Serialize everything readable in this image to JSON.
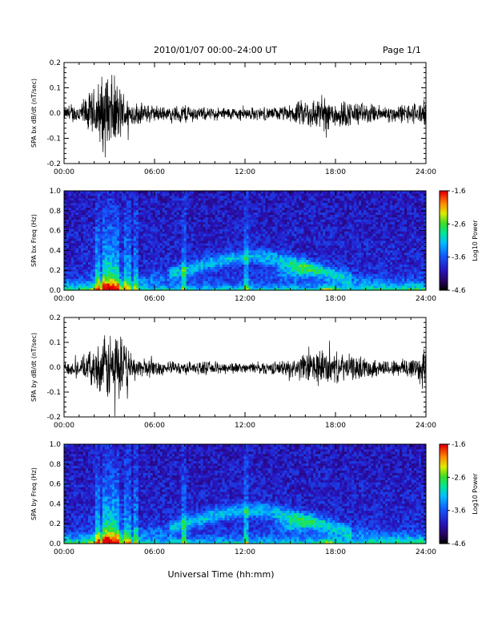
{
  "header": {
    "title": "2010/01/07  00:00–24:00 UT",
    "page": "Page 1/1"
  },
  "chart_data": [
    {
      "id": "bx-time",
      "type": "line",
      "ylabel": "SPA bx dB/dt (nT/sec)",
      "xlabel": "",
      "xlim": [
        0,
        24
      ],
      "ylim": [
        -0.2,
        0.2
      ],
      "xticks": [
        "00:00",
        "06:00",
        "12:00",
        "18:00",
        "24:00"
      ],
      "yticks": [
        "-0.2",
        "-0.1",
        "0.0",
        "0.1",
        "0.2"
      ],
      "series": [
        {
          "envelope": [
            [
              0,
              0.03
            ],
            [
              1,
              0.05
            ],
            [
              2,
              0.12
            ],
            [
              2.5,
              0.18
            ],
            [
              3,
              0.2
            ],
            [
              3.5,
              0.15
            ],
            [
              4,
              0.1
            ],
            [
              4.5,
              0.06
            ],
            [
              5,
              0.05
            ],
            [
              6,
              0.04
            ],
            [
              7,
              0.03
            ],
            [
              8,
              0.05
            ],
            [
              9,
              0.03
            ],
            [
              10,
              0.03
            ],
            [
              11,
              0.03
            ],
            [
              12,
              0.03
            ],
            [
              13,
              0.03
            ],
            [
              14,
              0.03
            ],
            [
              15,
              0.04
            ],
            [
              16,
              0.07
            ],
            [
              17,
              0.08
            ],
            [
              18,
              0.07
            ],
            [
              19,
              0.06
            ],
            [
              20,
              0.05
            ],
            [
              21,
              0.04
            ],
            [
              22,
              0.04
            ],
            [
              23,
              0.05
            ],
            [
              24,
              0.06
            ]
          ]
        }
      ]
    },
    {
      "id": "bx-spec",
      "type": "heatmap",
      "ylabel": "SPA bx Freq (Hz)",
      "xlabel": "",
      "xlim": [
        0,
        24
      ],
      "ylim": [
        0,
        1.0
      ],
      "xticks": [
        "00:00",
        "06:00",
        "12:00",
        "18:00",
        "24:00"
      ],
      "yticks": [
        "0.0",
        "0.2",
        "0.4",
        "0.6",
        "0.8",
        "1.0"
      ],
      "colorbar": {
        "label": "Log10 Power",
        "ticks": [
          "-1.6",
          "-2.6",
          "-3.6",
          "-4.6"
        ],
        "range": [
          -4.6,
          -1.6
        ]
      }
    },
    {
      "id": "by-time",
      "type": "line",
      "ylabel": "SPA by dB/dt (nT/sec)",
      "xlabel": "",
      "xlim": [
        0,
        24
      ],
      "ylim": [
        -0.2,
        0.2
      ],
      "xticks": [
        "00:00",
        "06:00",
        "12:00",
        "18:00",
        "24:00"
      ],
      "yticks": [
        "-0.2",
        "-0.1",
        "0.0",
        "0.1",
        "0.2"
      ],
      "series": [
        {
          "envelope": [
            [
              0,
              0.03
            ],
            [
              1,
              0.04
            ],
            [
              2,
              0.09
            ],
            [
              2.5,
              0.13
            ],
            [
              3,
              0.17
            ],
            [
              3.5,
              0.2
            ],
            [
              4,
              0.12
            ],
            [
              4.5,
              0.06
            ],
            [
              5,
              0.05
            ],
            [
              6,
              0.04
            ],
            [
              7,
              0.03
            ],
            [
              8,
              0.03
            ],
            [
              9,
              0.03
            ],
            [
              10,
              0.03
            ],
            [
              11,
              0.03
            ],
            [
              12,
              0.02
            ],
            [
              13,
              0.03
            ],
            [
              14,
              0.03
            ],
            [
              15,
              0.04
            ],
            [
              16,
              0.07
            ],
            [
              17,
              0.09
            ],
            [
              18,
              0.07
            ],
            [
              19,
              0.06
            ],
            [
              20,
              0.05
            ],
            [
              21,
              0.04
            ],
            [
              22,
              0.04
            ],
            [
              23,
              0.06
            ],
            [
              24,
              0.1
            ]
          ]
        }
      ]
    },
    {
      "id": "by-spec",
      "type": "heatmap",
      "ylabel": "SPA by Freq (Hz)",
      "xlabel": "Universal Time (hh:mm)",
      "xlim": [
        0,
        24
      ],
      "ylim": [
        0,
        1.0
      ],
      "xticks": [
        "00:00",
        "06:00",
        "12:00",
        "18:00",
        "24:00"
      ],
      "yticks": [
        "0.0",
        "0.2",
        "0.4",
        "0.6",
        "0.8",
        "1.0"
      ],
      "colorbar": {
        "label": "Log10 Power",
        "ticks": [
          "-1.6",
          "-2.6",
          "-3.6",
          "-4.6"
        ],
        "range": [
          -4.6,
          -1.6
        ]
      }
    }
  ]
}
